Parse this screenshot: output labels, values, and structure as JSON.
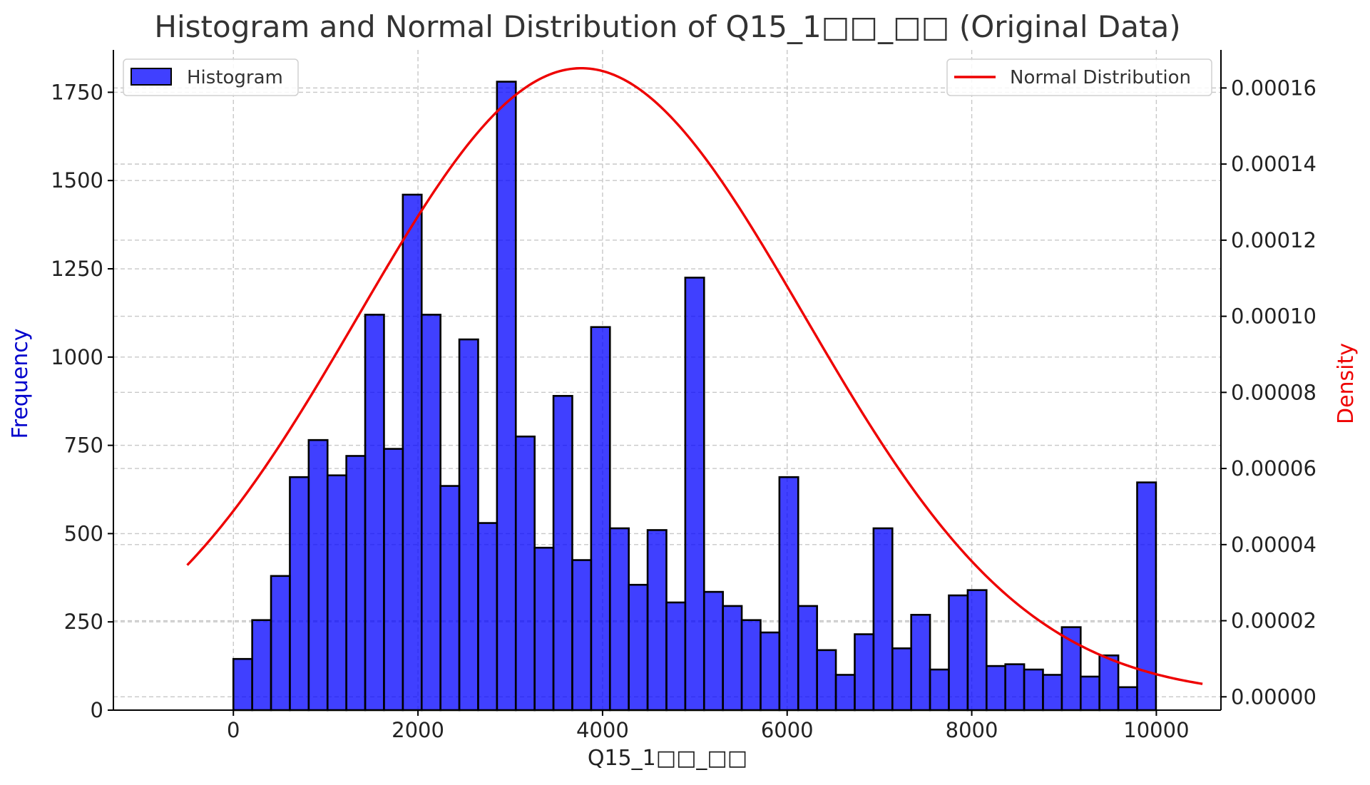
{
  "chart_data": {
    "type": "histogram",
    "title": "Histogram and Normal Distribution of Q15_1□□_□□ (Original Data)",
    "xlabel": "Q15_1□□_□□",
    "ylabel_left": "Frequency",
    "ylabel_right": "Density",
    "xlim": [
      -1300,
      10700
    ],
    "ylim_left": [
      0,
      1870
    ],
    "ylim_right": [
      -3.5e-06,
      0.00017
    ],
    "x_ticks": [
      0,
      2000,
      4000,
      6000,
      8000,
      10000
    ],
    "y_ticks_left": [
      0,
      250,
      500,
      750,
      1000,
      1250,
      1500,
      1750
    ],
    "y_ticks_right": [
      0.0,
      2e-05,
      4e-05,
      6e-05,
      8e-05,
      0.0001,
      0.00012,
      0.00014,
      0.00016
    ],
    "y_ticks_right_labels": [
      "0.00000",
      "0.00002",
      "0.00004",
      "0.00006",
      "0.00008",
      "0.00010",
      "0.00012",
      "0.00014",
      "0.00016"
    ],
    "grid": true,
    "bin_start": 0,
    "bin_width": 204,
    "histogram": {
      "name": "Histogram",
      "color": "#0000ff",
      "opacity": 0.75,
      "values": [
        145,
        255,
        380,
        660,
        765,
        665,
        720,
        1120,
        740,
        1460,
        1120,
        635,
        1050,
        530,
        1780,
        775,
        460,
        890,
        425,
        1085,
        515,
        355,
        510,
        305,
        1225,
        335,
        295,
        255,
        220,
        660,
        295,
        170,
        100,
        215,
        515,
        175,
        270,
        115,
        325,
        340,
        125,
        130,
        115,
        100,
        235,
        95,
        155,
        65,
        645
      ]
    },
    "normal_distribution": {
      "name": "Normal Distribution",
      "color": "#ee0000",
      "mean": 3770,
      "std": 2415,
      "x_range": [
        -500,
        10500
      ]
    },
    "legend": [
      {
        "label": "Histogram",
        "placement": "top-left"
      },
      {
        "label": "Normal Distribution",
        "placement": "top-right"
      }
    ],
    "colors": {
      "left_axis_label": "#0000cc",
      "right_axis_label": "#ee0000"
    }
  }
}
